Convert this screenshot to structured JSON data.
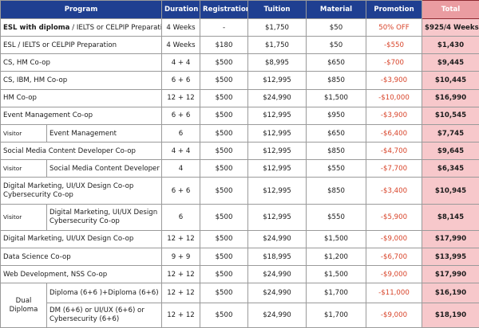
{
  "headers": {
    "program": "Program",
    "duration": "Duration",
    "registration": "Registration",
    "tuition": "Tuition",
    "material": "Material",
    "promotion": "Promotion",
    "total": "Total"
  },
  "rows": [
    {
      "program_bold": "ESL with diploma",
      "program": " / IELTS or CELPIP Preparation",
      "duration": "4 Weeks",
      "registration": "-",
      "tuition": "$1,750",
      "material": "$50",
      "promotion": "50% OFF",
      "total": "$925/4 Weeks"
    },
    {
      "program": "ESL / IELTS or CELPIP Preparation",
      "duration": "4 Weeks",
      "registration": "$180",
      "tuition": "$1,750",
      "material": "$50",
      "promotion": "-$550",
      "total": "$1,430"
    },
    {
      "program": "CS, HM Co-op",
      "duration": "4 + 4",
      "registration": "$500",
      "tuition": "$8,995",
      "material": "$650",
      "promotion": "-$700",
      "total": "$9,445"
    },
    {
      "program": "CS, IBM, HM Co-op",
      "duration": "6 + 6",
      "registration": "$500",
      "tuition": "$12,995",
      "material": "$850",
      "promotion": "-$3,900",
      "total": "$10,445"
    },
    {
      "program": "HM Co-op",
      "duration": "12 + 12",
      "registration": "$500",
      "tuition": "$24,990",
      "material": "$1,500",
      "promotion": "-$10,000",
      "total": "$16,990"
    },
    {
      "program": "Event Management Co-op",
      "duration": "6 + 6",
      "registration": "$500",
      "tuition": "$12,995",
      "material": "$950",
      "promotion": "-$3,900",
      "total": "$10,545"
    },
    {
      "label": "Visitor",
      "program": "Event Management",
      "duration": "6",
      "registration": "$500",
      "tuition": "$12,995",
      "material": "$650",
      "promotion": "-$6,400",
      "total": "$7,745"
    },
    {
      "program": "Social Media Content Developer Co-op",
      "duration": "4 + 4",
      "registration": "$500",
      "tuition": "$12,995",
      "material": "$850",
      "promotion": "-$4,700",
      "total": "$9,645"
    },
    {
      "label": "Visitor",
      "program": "Social Media Content Developer",
      "duration": "4",
      "registration": "$500",
      "tuition": "$12,995",
      "material": "$550",
      "promotion": "-$7,700",
      "total": "$6,345"
    },
    {
      "program_line1": "Digital Marketing, UI/UX Design Co-op",
      "program_line2": "Cybersecurity Co-op",
      "duration": "6 + 6",
      "registration": "$500",
      "tuition": "$12,995",
      "material": "$850",
      "promotion": "-$3,400",
      "total": "$10,945"
    },
    {
      "label": "Visitor",
      "program_line1": "Digital Marketing, UI/UX Design",
      "program_line2": "Cybersecurity Co-op",
      "duration": "6",
      "registration": "$500",
      "tuition": "$12,995",
      "material": "$550",
      "promotion": "-$5,900",
      "total": "$8,145"
    },
    {
      "program": "Digital Marketing, UI/UX Design Co-op",
      "duration": "12 + 12",
      "registration": "$500",
      "tuition": "$24,990",
      "material": "$1,500",
      "promotion": "-$9,000",
      "total": "$17,990"
    },
    {
      "program": "Data Science Co-op",
      "duration": "9 + 9",
      "registration": "$500",
      "tuition": "$18,995",
      "material": "$1,200",
      "promotion": "-$6,700",
      "total": "$13,995"
    },
    {
      "program": "Web Development, NSS Co-op",
      "duration": "12 + 12",
      "registration": "$500",
      "tuition": "$24,990",
      "material": "$1,500",
      "promotion": "-$9,000",
      "total": "$17,990"
    },
    {
      "label_line1": "Dual",
      "label_line2": "Diploma",
      "program": "Diploma (6+6 )+Diploma (6+6)",
      "duration": "12 + 12",
      "registration": "$500",
      "tuition": "$24,990",
      "material": "$1,700",
      "promotion": "-$11,000",
      "total": "$16,190"
    },
    {
      "program_line1": "DM (6+6) or UI/UX (6+6) or",
      "program_line2": "Cybersecurity (6+6)",
      "duration": "12 + 12",
      "registration": "$500",
      "tuition": "$24,990",
      "material": "$1,700",
      "promotion": "-$9,000",
      "total": "$18,190"
    }
  ]
}
